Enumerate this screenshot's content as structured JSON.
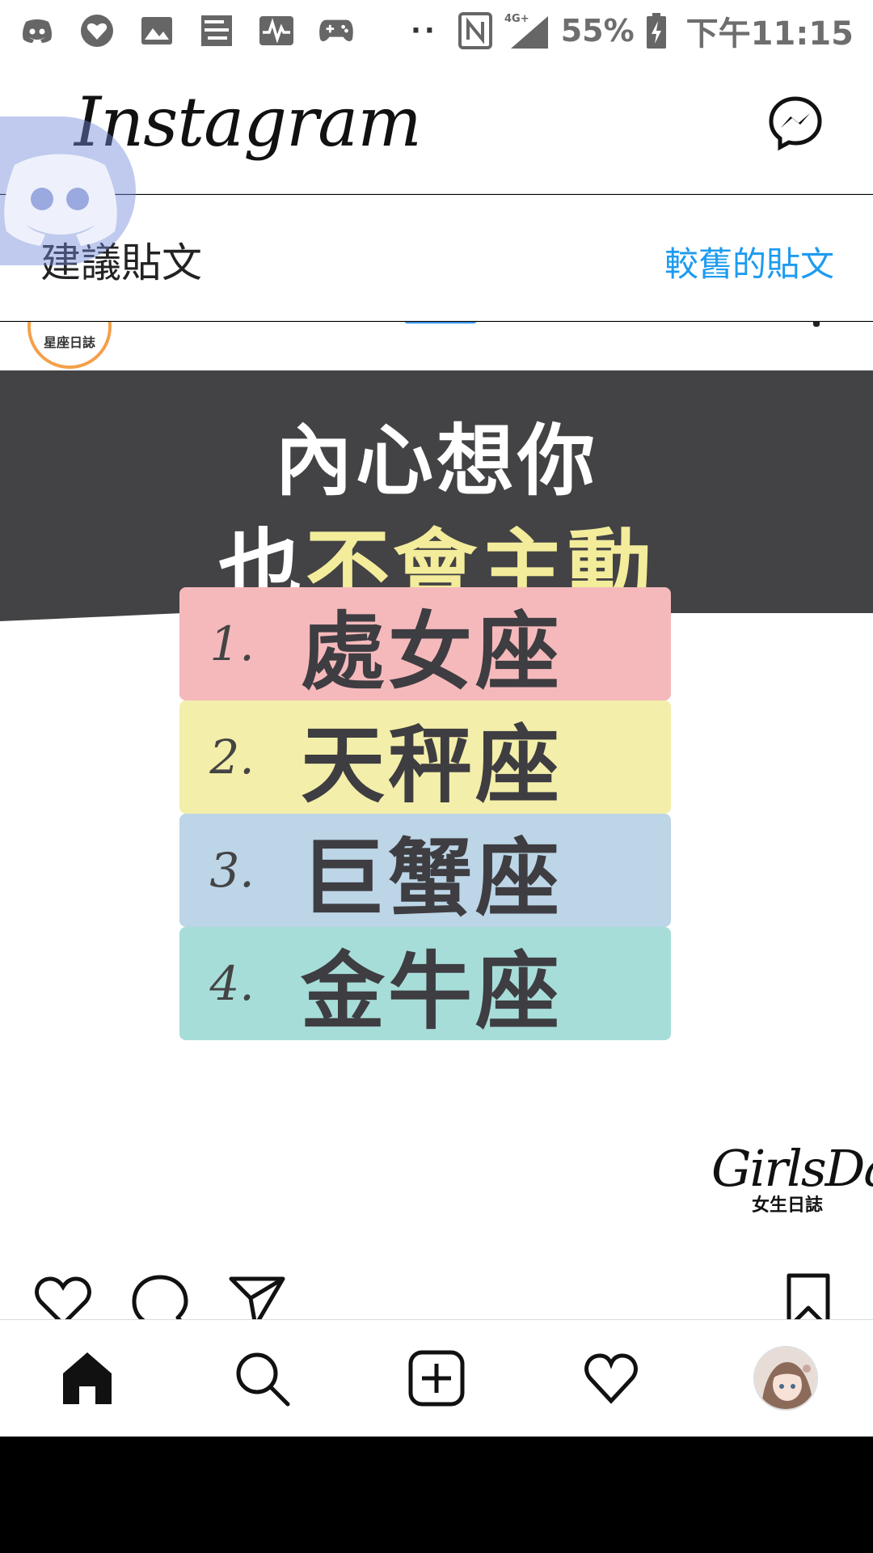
{
  "status_bar": {
    "battery_percent": "55%",
    "clock": "下午11:15",
    "network": "4G+",
    "icons": [
      "discord-icon",
      "heart-app-icon",
      "image-icon",
      "puzzle-icon",
      "pulse-icon",
      "gamepad-icon",
      "more-dots-icon",
      "nfc-icon",
      "signal-icon",
      "battery-icon"
    ]
  },
  "header": {
    "app_title": "Instagram",
    "messenger_icon": "messenger-icon"
  },
  "suggested": {
    "title": "建議貼文",
    "older_posts_link": "較舊的貼文"
  },
  "post": {
    "account_avatar_text": "星座日誌",
    "headline_line1": "內心想你",
    "headline_line2_a": "也",
    "headline_line2_b": "不會主動",
    "ranking": [
      {
        "num": "1.",
        "sign": "處女座",
        "color": "#f5b9bc"
      },
      {
        "num": "2.",
        "sign": "天秤座",
        "color": "#f3eea9"
      },
      {
        "num": "3.",
        "sign": "巨蟹座",
        "color": "#bcd5e7"
      },
      {
        "num": "4.",
        "sign": "金牛座",
        "color": "#a7ddd9"
      }
    ],
    "brand_script": "GirlsDays",
    "brand_sub": "女生日誌"
  },
  "actions": {
    "like": "heart-icon",
    "comment": "comment-icon",
    "share": "send-icon",
    "save": "bookmark-icon"
  },
  "bottom_nav": {
    "items": [
      "home-icon",
      "search-icon",
      "add-post-icon",
      "activity-heart-icon",
      "profile-avatar"
    ]
  },
  "colors": {
    "accent_link": "#1d9bf0",
    "banner": "#434245",
    "headline_yellow": "#f3ec9b",
    "discord_bubble": "#7289da"
  }
}
